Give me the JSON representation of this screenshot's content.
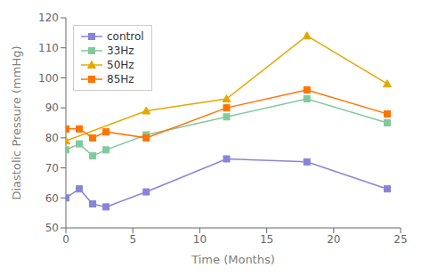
{
  "chart_data": {
    "type": "line",
    "xlabel": "Time (Months)",
    "ylabel": "Diastolic Pressure (mmHg)",
    "series": [
      {
        "name": "control",
        "marker": "square",
        "x": [
          0,
          1,
          2,
          3,
          6,
          12,
          18,
          24
        ],
        "values": [
          60,
          63,
          58,
          57,
          62,
          73,
          72,
          63
        ]
      },
      {
        "name": "33Hz",
        "marker": "square",
        "x": [
          0,
          1,
          2,
          3,
          6,
          12,
          18,
          24
        ],
        "values": [
          76,
          78,
          74,
          76,
          81,
          87,
          93,
          85
        ]
      },
      {
        "name": "50Hz",
        "marker": "triangle",
        "x": [
          0,
          6,
          12,
          18,
          24
        ],
        "values": [
          79,
          89,
          93,
          114,
          98
        ]
      },
      {
        "name": "85Hz",
        "marker": "square",
        "x": [
          0,
          1,
          2,
          3,
          6,
          12,
          18,
          24
        ],
        "values": [
          83,
          83,
          80,
          82,
          80,
          90,
          96,
          88
        ]
      }
    ],
    "xlim": [
      0,
      25
    ],
    "xticks": [
      0,
      5,
      10,
      15,
      20,
      25
    ],
    "ylim": [
      50,
      120
    ],
    "yticks": [
      50,
      60,
      70,
      80,
      90,
      100,
      110,
      120
    ],
    "grid": false,
    "legend": "upper left"
  }
}
